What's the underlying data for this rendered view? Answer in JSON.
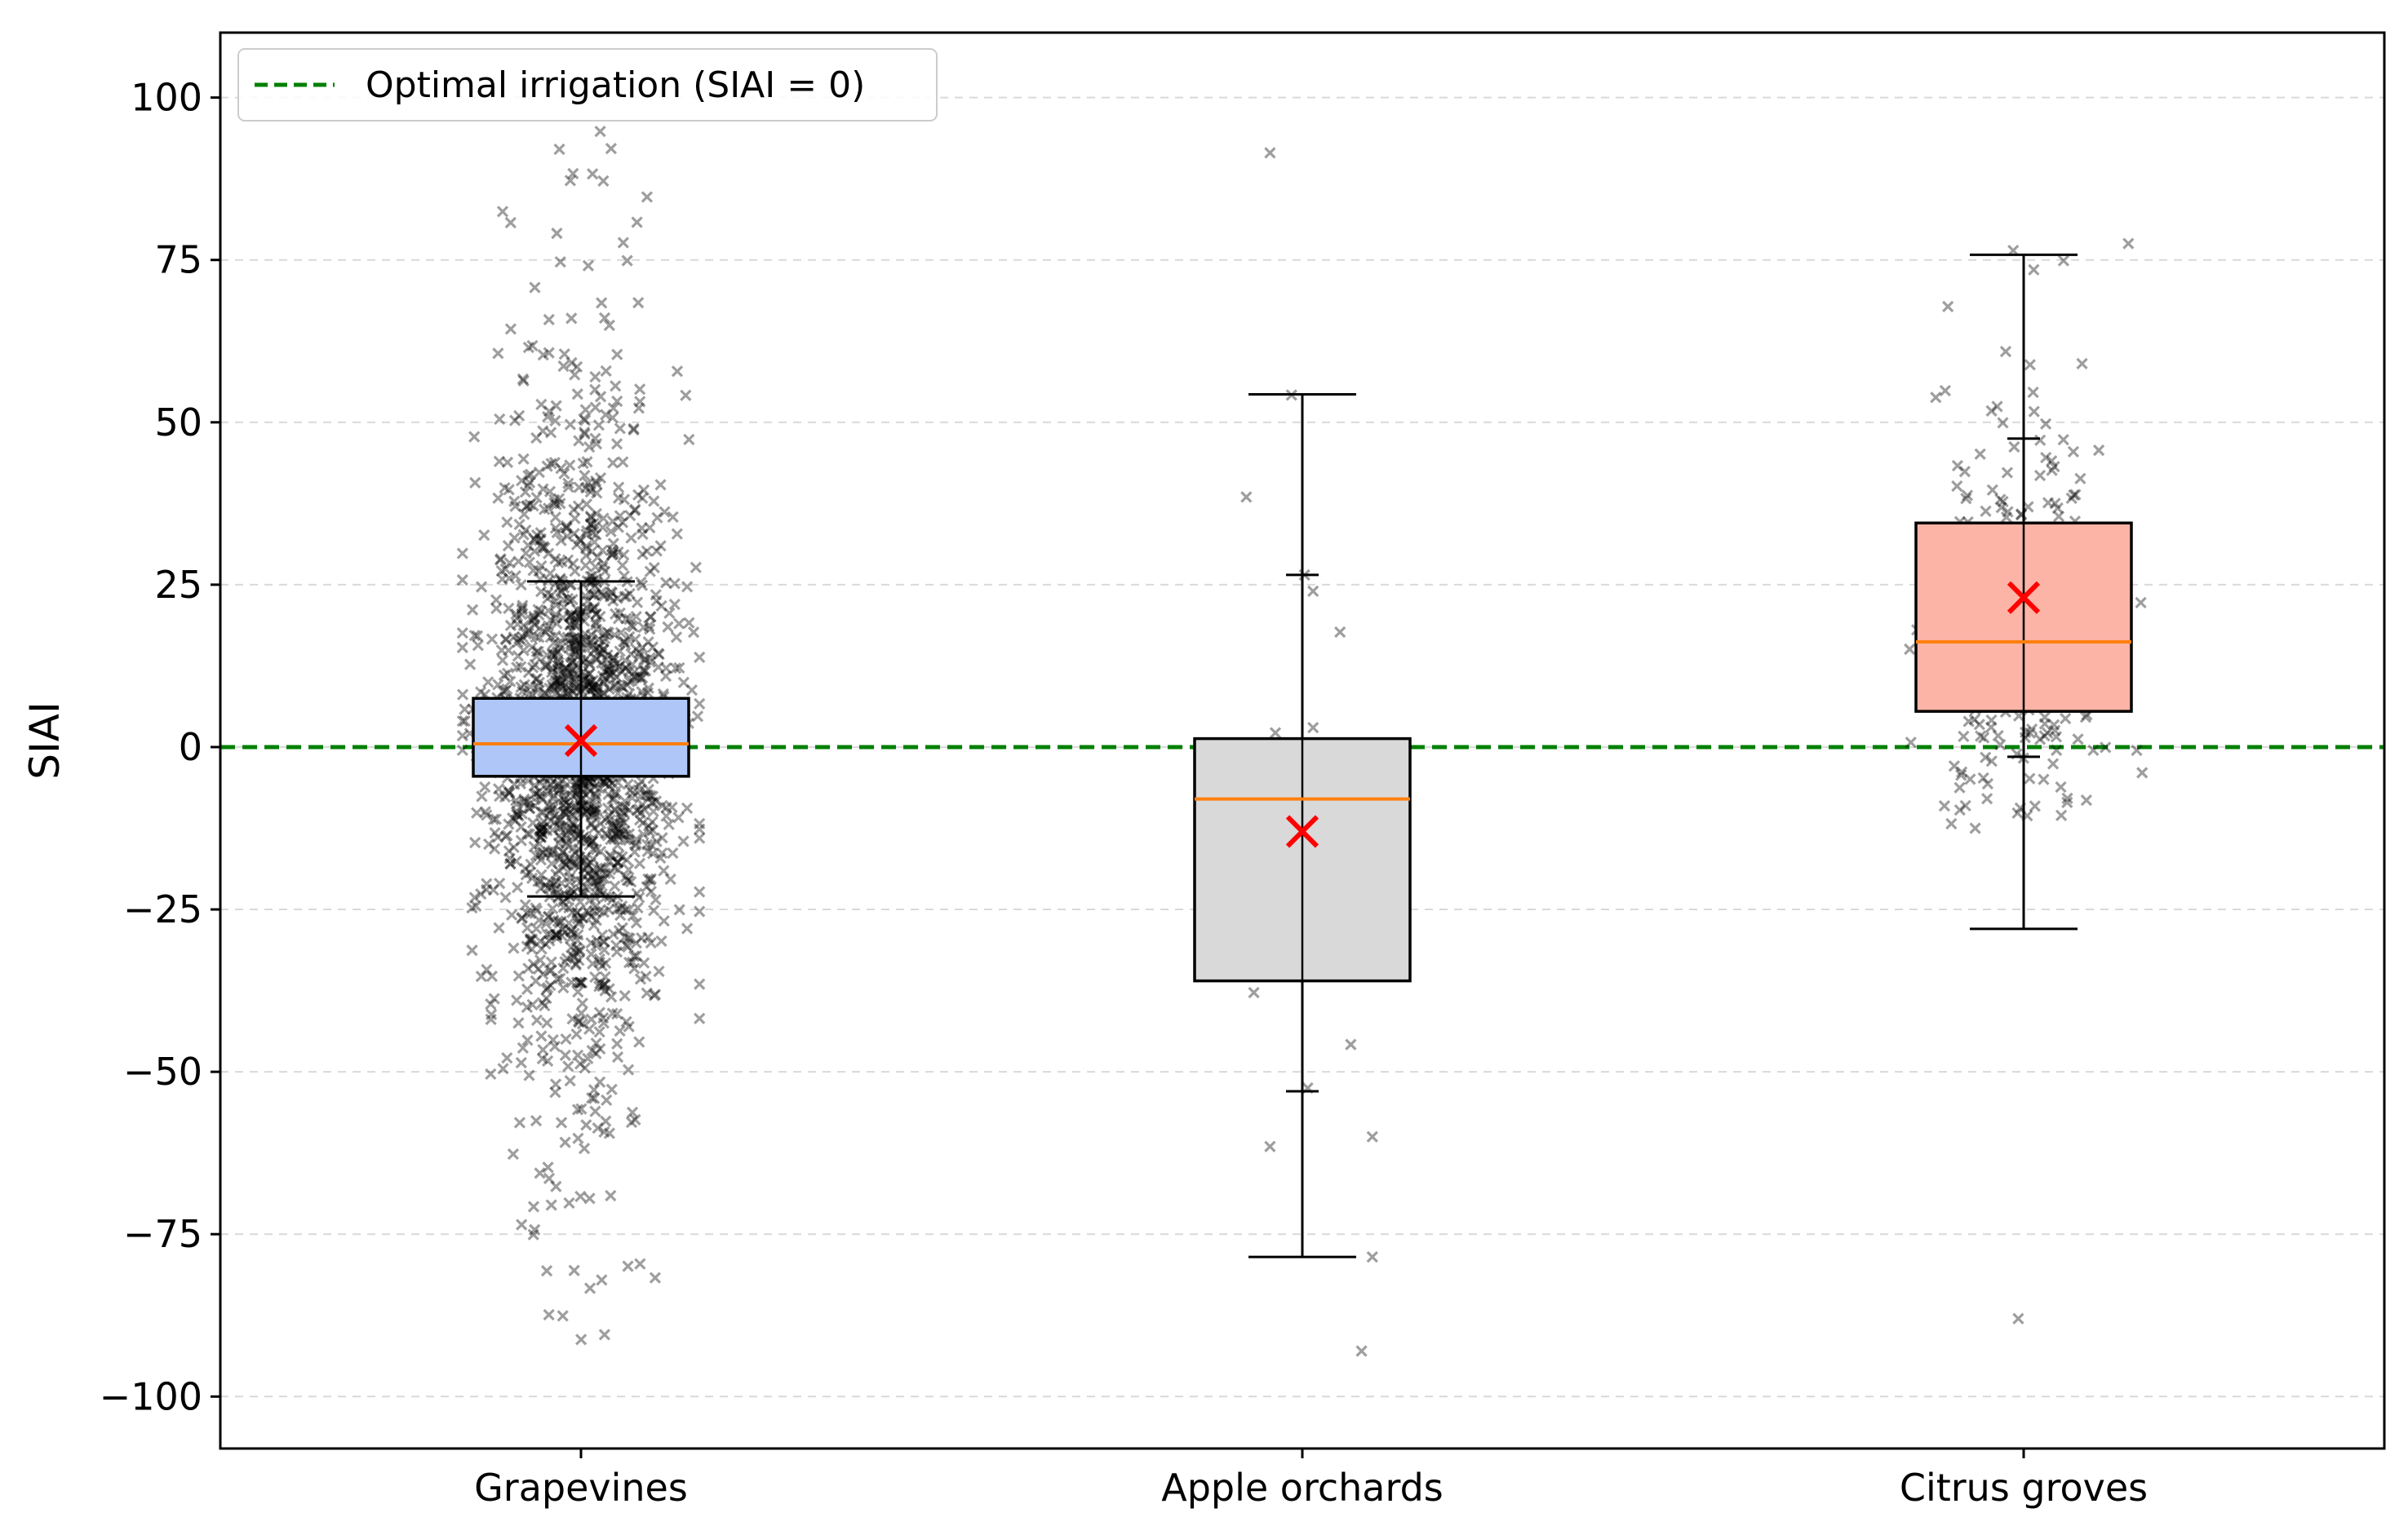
{
  "chart_data": {
    "type": "box",
    "ylabel": "SIAI",
    "xlabel": "",
    "title": "",
    "ylim": [
      -108,
      110
    ],
    "yticks": [
      100,
      75,
      50,
      25,
      0,
      -25,
      -50,
      -75,
      -100
    ],
    "ytick_labels": [
      "100",
      "75",
      "50",
      "25",
      "0",
      "−25",
      "−50",
      "−75",
      "−100"
    ],
    "grid": "horizontal-dashed",
    "legend": {
      "position": "top-left",
      "entries": [
        {
          "label": "Optimal irrigation (SIAI = 0)",
          "color": "#008000",
          "style": "dashed"
        }
      ]
    },
    "reference_line": {
      "y": 0,
      "color": "#008000"
    },
    "categories": [
      "Grapevines",
      "Apple orchards",
      "Citrus groves"
    ],
    "boxes": [
      {
        "name": "Grapevines",
        "whisker_low": -23,
        "q1": -4.5,
        "median": 0.5,
        "q3": 7.5,
        "whisker_high": 25.5,
        "mean": 1,
        "fill": "#aec7f8",
        "points": {
          "count": 1800,
          "center": 0,
          "spread": 22,
          "min": -99,
          "max": 97,
          "seed": 11
        }
      },
      {
        "name": "Apple orchards",
        "whisker_low": -78.5,
        "q1": -36,
        "median": -8,
        "q3": 1.3,
        "whisker_high": 54.3,
        "mean": -13,
        "fill": "#d9d9d9",
        "inner_caps": [
          26.5,
          -53
        ],
        "points": [
          [
            -0.3,
            91.5
          ],
          [
            -0.1,
            54.2
          ],
          [
            -0.52,
            38.5
          ],
          [
            0.35,
            17.7
          ],
          [
            0.1,
            24
          ],
          [
            0.02,
            26.5
          ],
          [
            -0.25,
            2.2
          ],
          [
            0.1,
            3.0
          ],
          [
            -0.05,
            0.5
          ],
          [
            -0.45,
            -37.8
          ],
          [
            0.45,
            -45.8
          ],
          [
            0.05,
            -52.5
          ],
          [
            -0.3,
            -61.5
          ],
          [
            0.65,
            -60
          ],
          [
            0.65,
            -78.5
          ],
          [
            0.55,
            -93
          ]
        ]
      },
      {
        "name": "Citrus groves",
        "whisker_low": -28,
        "q1": 5.5,
        "median": 16.2,
        "q3": 34.5,
        "whisker_high": 75.8,
        "mean": 23,
        "fill": "#fbb4a5",
        "inner_caps": [
          47.5,
          -1.5
        ],
        "points": {
          "count": 300,
          "center": 12,
          "spread": 14,
          "min": -12,
          "max": 99,
          "seed": 7,
          "extra": [
            [
              -0.05,
              -88
            ],
            [
              -0.45,
              -12.5
            ]
          ]
        }
      }
    ],
    "mean_marker": {
      "shape": "x",
      "color": "#ff0000"
    },
    "median_color": "#ff7f0e"
  }
}
